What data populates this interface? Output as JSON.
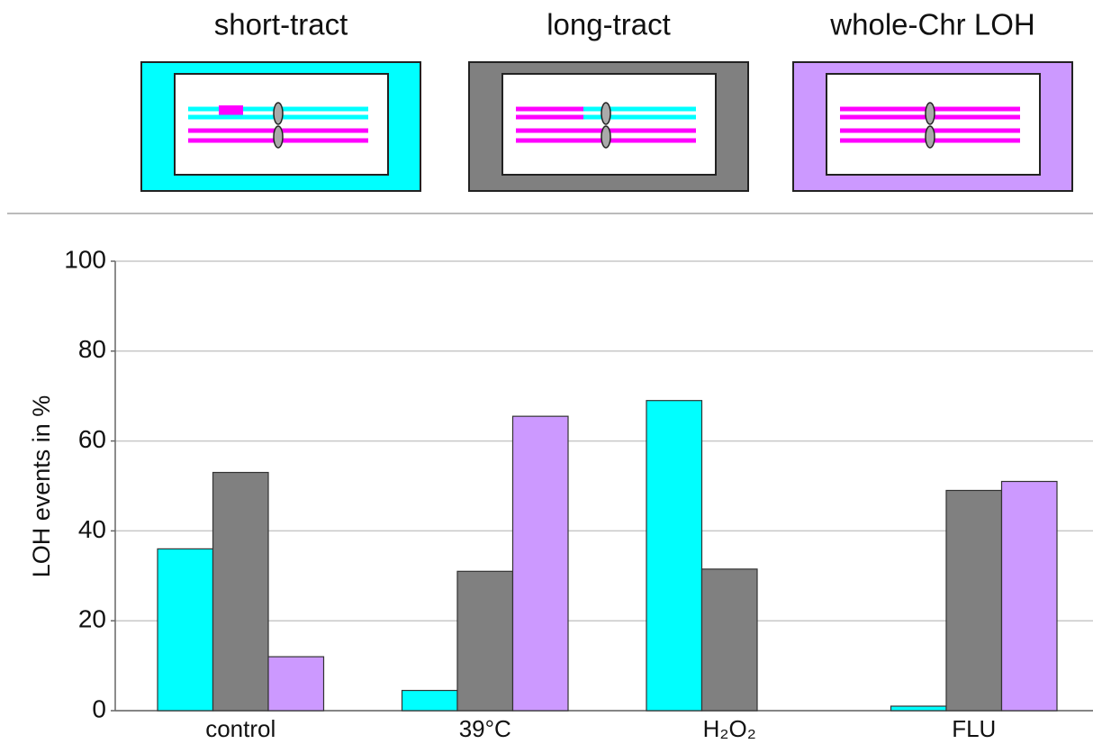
{
  "chart_data": {
    "type": "bar",
    "categories": [
      "control",
      "39°C",
      "H₂O₂",
      "FLU"
    ],
    "series": [
      {
        "name": "short-tract",
        "color": "#00ffff",
        "values": [
          36,
          4.5,
          69,
          1
        ]
      },
      {
        "name": "long-tract",
        "color": "#808080",
        "values": [
          53,
          31,
          31.5,
          49
        ]
      },
      {
        "name": "whole-Chr LOH",
        "color": "#cc99ff",
        "values": [
          12,
          65.5,
          0,
          51
        ]
      }
    ],
    "y_label": "LOH events in %",
    "ylim": [
      0,
      100
    ],
    "yticks": [
      0,
      20,
      40,
      60,
      80,
      100
    ],
    "grid": true
  }
}
